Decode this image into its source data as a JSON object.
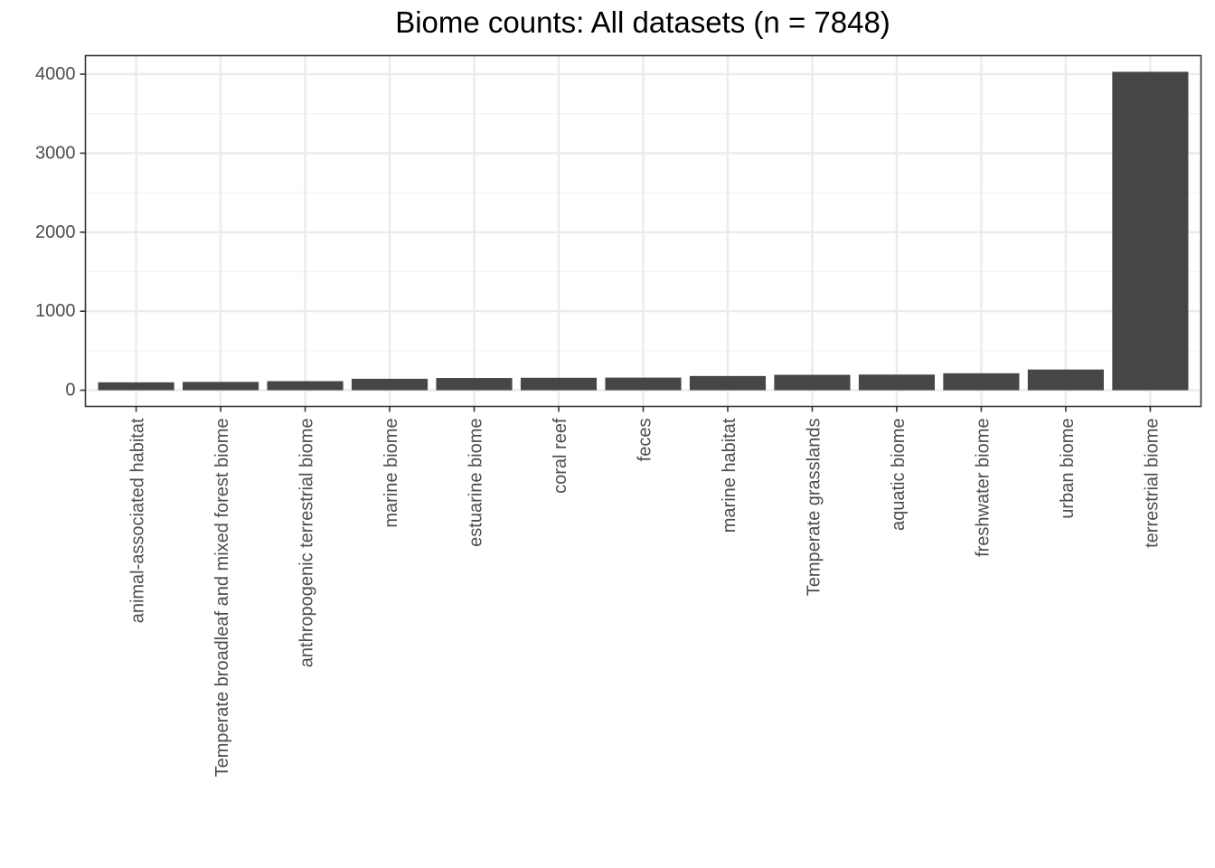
{
  "chart_data": {
    "type": "bar",
    "title": "Biome counts: All datasets (n = 7848)",
    "xlabel": "",
    "ylabel": "",
    "categories": [
      "animal-associated habitat",
      "Temperate broadleaf and mixed forest biome",
      "anthropogenic terrestrial biome",
      "marine biome",
      "estuarine biome",
      "coral reef",
      "feces",
      "marine habitat",
      "Temperate grasslands",
      "aquatic biome",
      "freshwater biome",
      "urban biome",
      "terrestrial biome"
    ],
    "values": [
      100,
      105,
      115,
      145,
      155,
      158,
      160,
      180,
      195,
      198,
      215,
      262,
      4030
    ],
    "ylim": [
      -205,
      4235
    ],
    "yticks": [
      0,
      1000,
      2000,
      3000,
      4000
    ],
    "y_tick_labels": [
      "0",
      "1000",
      "2000",
      "3000",
      "4000"
    ],
    "grid": true,
    "legend": "none",
    "colors": {
      "bar": "#464646",
      "grid_major": "#ebebeb",
      "grid_minor": "#f3f3f3",
      "panel_border": "#333333",
      "tick_text": "#4d4d4d"
    }
  }
}
